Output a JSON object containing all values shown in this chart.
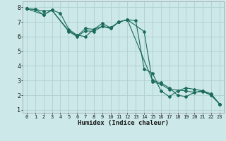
{
  "xlabel": "Humidex (Indice chaleur)",
  "bg_color": "#cce8e8",
  "grid_color": "#b0cfcf",
  "line_color": "#1a6b5a",
  "xlim": [
    -0.5,
    23.5
  ],
  "ylim": [
    0.8,
    8.4
  ],
  "yticks": [
    1,
    2,
    3,
    4,
    5,
    6,
    7,
    8
  ],
  "xticks": [
    0,
    1,
    2,
    3,
    4,
    5,
    6,
    7,
    8,
    9,
    10,
    11,
    12,
    13,
    14,
    15,
    16,
    17,
    18,
    19,
    20,
    21,
    22,
    23
  ],
  "xtick_labels": [
    "0",
    "1",
    "2",
    "3",
    "4",
    "5",
    "6",
    "7",
    "8",
    "9",
    "10",
    "11",
    "12",
    "13",
    "14",
    "15",
    "16",
    "17",
    "18",
    "19",
    "20",
    "21",
    "22",
    "23"
  ],
  "line1_x": [
    0,
    1,
    2,
    3,
    4,
    5,
    6,
    7,
    8,
    9,
    10,
    11,
    12,
    13,
    14,
    15,
    16,
    17,
    18,
    19,
    20,
    21,
    22,
    23
  ],
  "line1_y": [
    7.9,
    7.85,
    7.75,
    7.8,
    7.6,
    6.5,
    6.1,
    6.0,
    6.5,
    6.9,
    6.6,
    7.0,
    7.15,
    7.1,
    3.8,
    3.5,
    2.3,
    1.9,
    2.3,
    2.5,
    2.4,
    2.3,
    2.1,
    1.4
  ],
  "line2_x": [
    0,
    1,
    2,
    3,
    5,
    6,
    7,
    8,
    9,
    10,
    11,
    12,
    15,
    16,
    17,
    18,
    19,
    20,
    21,
    22,
    23
  ],
  "line2_y": [
    7.9,
    7.85,
    7.5,
    7.8,
    6.4,
    6.05,
    6.55,
    6.5,
    6.7,
    6.6,
    7.0,
    7.15,
    3.0,
    2.85,
    2.5,
    2.0,
    1.9,
    2.2,
    2.3,
    2.0,
    1.4
  ],
  "line3_x": [
    0,
    2,
    3,
    5,
    6,
    7,
    8,
    9,
    10,
    11,
    12,
    14,
    15,
    16,
    17,
    19,
    20,
    21,
    22,
    23
  ],
  "line3_y": [
    7.9,
    7.5,
    7.8,
    6.35,
    6.0,
    6.4,
    6.35,
    6.7,
    6.55,
    7.0,
    7.15,
    6.35,
    2.9,
    2.75,
    2.4,
    2.3,
    2.2,
    2.25,
    2.0,
    1.4
  ]
}
